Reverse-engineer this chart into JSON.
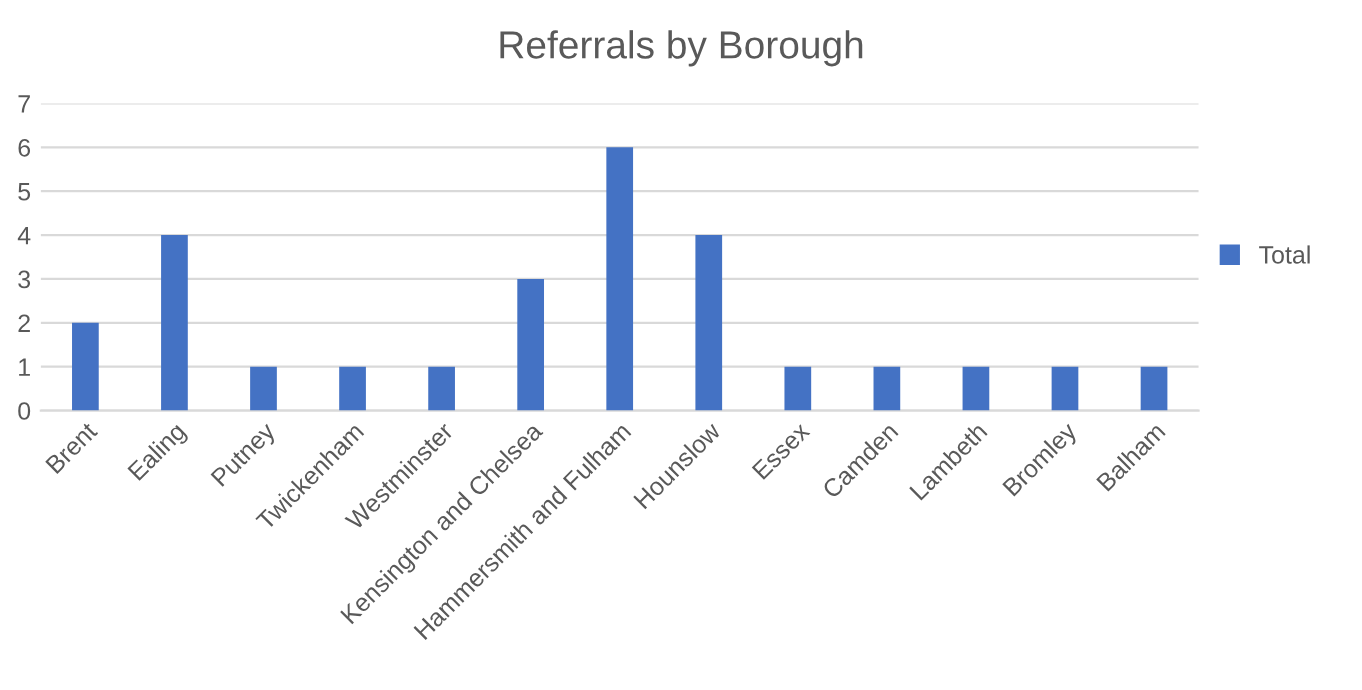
{
  "chart_data": {
    "type": "bar",
    "title": "Referrals by Borough",
    "categories": [
      "Brent",
      "Ealing",
      "Putney",
      "Twickenham",
      "Westminster",
      "Kensington and Chelsea",
      "Hammersmith and Fulham",
      "Hounslow",
      "Essex",
      "Camden",
      "Lambeth",
      "Bromley",
      "Balham"
    ],
    "series": [
      {
        "name": "Total",
        "color": "#4472c4",
        "values": [
          2,
          4,
          1,
          1,
          1,
          3,
          6,
          4,
          1,
          1,
          1,
          1,
          1
        ]
      }
    ],
    "ylim": [
      0,
      7
    ],
    "yticks": [
      0,
      1,
      2,
      3,
      4,
      5,
      6,
      7
    ],
    "grid": "y",
    "legend": "right"
  }
}
